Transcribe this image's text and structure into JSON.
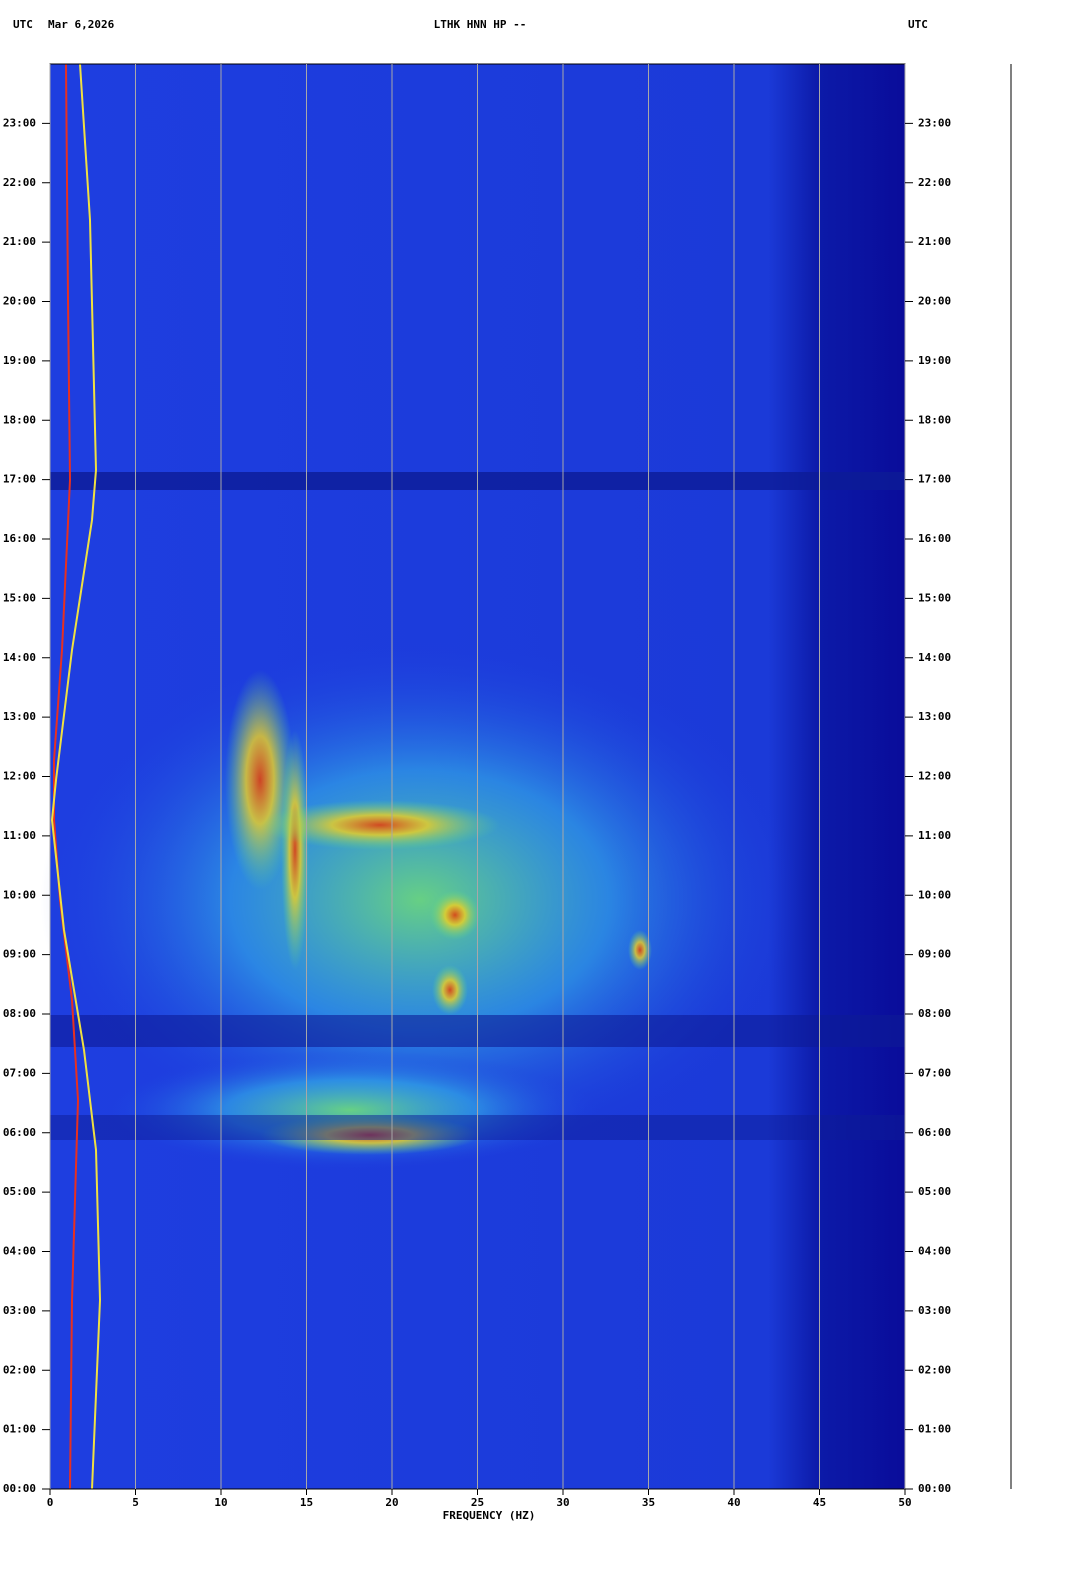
{
  "chart_data": {
    "type": "spectrogram",
    "title": "LTHK HNN HP --",
    "time_zone": "UTC",
    "date": "Mar 6,2026",
    "x_label": "FREQUENCY (HZ)",
    "xlim": [
      0,
      50
    ],
    "xticks": [
      0,
      5,
      10,
      15,
      20,
      25,
      30,
      35,
      40,
      45,
      50
    ],
    "ylim": [
      0,
      24
    ],
    "yticks": [
      {
        "value": 0,
        "label": "00:00"
      },
      {
        "value": 1,
        "label": "01:00"
      },
      {
        "value": 2,
        "label": "02:00"
      },
      {
        "value": 3,
        "label": "03:00"
      },
      {
        "value": 4,
        "label": "04:00"
      },
      {
        "value": 5,
        "label": "05:00"
      },
      {
        "value": 6,
        "label": "06:00"
      },
      {
        "value": 7,
        "label": "07:00"
      },
      {
        "value": 8,
        "label": "08:00"
      },
      {
        "value": 9,
        "label": "09:00"
      },
      {
        "value": 10,
        "label": "10:00"
      },
      {
        "value": 11,
        "label": "11:00"
      },
      {
        "value": 12,
        "label": "12:00"
      },
      {
        "value": 13,
        "label": "13:00"
      },
      {
        "value": 14,
        "label": "14:00"
      },
      {
        "value": 15,
        "label": "15:00"
      },
      {
        "value": 16,
        "label": "16:00"
      },
      {
        "value": 17,
        "label": "17:00"
      },
      {
        "value": 18,
        "label": "18:00"
      },
      {
        "value": 19,
        "label": "19:00"
      },
      {
        "value": 20,
        "label": "20:00"
      },
      {
        "value": 21,
        "label": "21:00"
      },
      {
        "value": 22,
        "label": "22:00"
      },
      {
        "value": 23,
        "label": "23:00"
      }
    ],
    "grid": true
  }
}
